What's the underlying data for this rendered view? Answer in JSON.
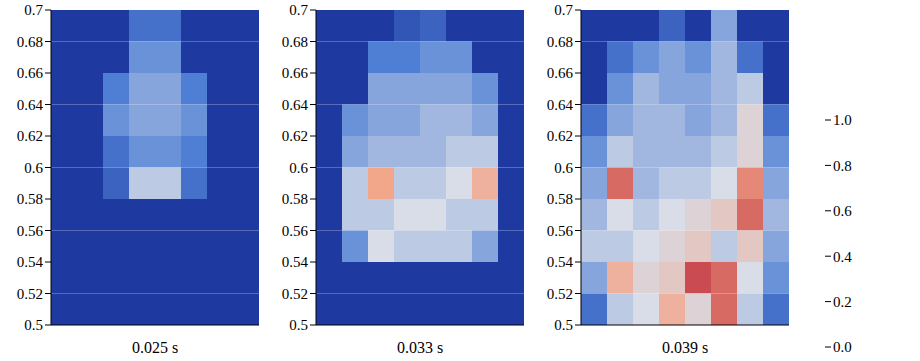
{
  "chart_data": [
    {
      "type": "heatmap",
      "xlabel": "0.025 s",
      "ylim": [
        0.5,
        0.7
      ],
      "yticks": [
        0.5,
        0.52,
        0.54,
        0.56,
        0.58,
        0.6,
        0.62,
        0.64,
        0.66,
        0.68,
        0.7
      ],
      "tick_labels": "y",
      "cells": [
        [
          0,
          0,
          0,
          0.2,
          0.2,
          0,
          0,
          0
        ],
        [
          0,
          0,
          0,
          0.3,
          0.3,
          0,
          0,
          0
        ],
        [
          0,
          0,
          0.25,
          0.35,
          0.35,
          0.25,
          0,
          0
        ],
        [
          0,
          0,
          0.3,
          0.35,
          0.35,
          0.3,
          0,
          0
        ],
        [
          0,
          0,
          0.2,
          0.3,
          0.3,
          0.25,
          0,
          0
        ],
        [
          0,
          0,
          0.15,
          0.45,
          0.45,
          0.2,
          0,
          0
        ],
        [
          0,
          0,
          0,
          0,
          0,
          0,
          0,
          0
        ],
        [
          0,
          0,
          0,
          0,
          0,
          0,
          0,
          0
        ],
        [
          0,
          0,
          0,
          0,
          0,
          0,
          0,
          0
        ],
        [
          0,
          0,
          0,
          0,
          0,
          0,
          0,
          0
        ]
      ]
    },
    {
      "type": "heatmap",
      "xlabel": "0.033 s",
      "ylim": [
        0.5,
        0.7
      ],
      "yticks": [
        0.5,
        0.52,
        0.54,
        0.56,
        0.58,
        0.6,
        0.62,
        0.64,
        0.66,
        0.68,
        0.7
      ],
      "tick_labels": "y",
      "cells": [
        [
          0,
          0,
          0,
          0.1,
          0.15,
          0,
          0,
          0
        ],
        [
          0,
          0,
          0.25,
          0.25,
          0.3,
          0.3,
          0,
          0
        ],
        [
          0,
          0,
          0.35,
          0.35,
          0.35,
          0.35,
          0.3,
          0
        ],
        [
          0,
          0.3,
          0.35,
          0.35,
          0.4,
          0.4,
          0.35,
          0
        ],
        [
          0,
          0.35,
          0.4,
          0.4,
          0.4,
          0.45,
          0.45,
          0
        ],
        [
          0,
          0.45,
          0.75,
          0.45,
          0.45,
          0.5,
          0.7,
          0
        ],
        [
          0,
          0.45,
          0.45,
          0.5,
          0.5,
          0.45,
          0.45,
          0
        ],
        [
          0,
          0.3,
          0.5,
          0.45,
          0.45,
          0.45,
          0.35,
          0
        ],
        [
          0,
          0,
          0,
          0,
          0,
          0,
          0,
          0
        ],
        [
          0,
          0,
          0,
          0,
          0,
          0,
          0,
          0
        ]
      ]
    },
    {
      "type": "heatmap",
      "xlabel": "0.039 s",
      "ylim": [
        0.5,
        0.7
      ],
      "yticks": [
        0.5,
        0.52,
        0.54,
        0.56,
        0.58,
        0.6,
        0.62,
        0.64,
        0.66,
        0.68,
        0.7
      ],
      "tick_labels": "y",
      "cells": [
        [
          0,
          0,
          0,
          0.15,
          0,
          0.35,
          0,
          0
        ],
        [
          0,
          0.2,
          0.3,
          0.35,
          0.3,
          0.4,
          0.2,
          0
        ],
        [
          0,
          0.3,
          0.4,
          0.35,
          0.35,
          0.4,
          0.45,
          0
        ],
        [
          0.2,
          0.35,
          0.4,
          0.4,
          0.35,
          0.4,
          0.55,
          0.2
        ],
        [
          0.3,
          0.45,
          0.4,
          0.4,
          0.4,
          0.45,
          0.55,
          0.3
        ],
        [
          0.35,
          0.85,
          0.4,
          0.45,
          0.45,
          0.5,
          0.8,
          0.35
        ],
        [
          0.4,
          0.5,
          0.45,
          0.5,
          0.55,
          0.6,
          0.85,
          0.4
        ],
        [
          0.45,
          0.45,
          0.5,
          0.55,
          0.6,
          0.45,
          0.6,
          0.35
        ],
        [
          0.35,
          0.7,
          0.55,
          0.6,
          0.9,
          0.85,
          0.5,
          0.3
        ],
        [
          0.2,
          0.45,
          0.5,
          0.7,
          0.55,
          0.85,
          0.45,
          0.2
        ]
      ],
      "colorbar": {
        "range": [
          0,
          1
        ],
        "ticks": [
          {
            "value": 0,
            "label": "0.0"
          },
          0.2,
          0.4,
          0.6,
          0.8,
          {
            "value": 1,
            "label": "1.0"
          }
        ]
      }
    }
  ]
}
